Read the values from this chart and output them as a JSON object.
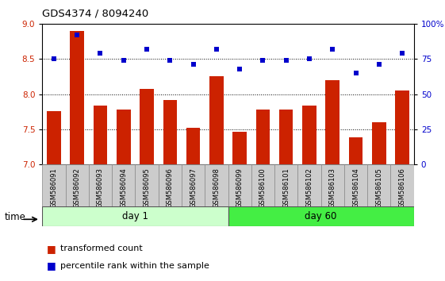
{
  "title": "GDS4374 / 8094240",
  "samples": [
    "GSM586091",
    "GSM586092",
    "GSM586093",
    "GSM586094",
    "GSM586095",
    "GSM586096",
    "GSM586097",
    "GSM586098",
    "GSM586099",
    "GSM586100",
    "GSM586101",
    "GSM586102",
    "GSM586103",
    "GSM586104",
    "GSM586105",
    "GSM586106"
  ],
  "transformed_count": [
    7.76,
    8.9,
    7.84,
    7.78,
    8.08,
    7.92,
    7.52,
    8.25,
    7.46,
    7.78,
    7.78,
    7.84,
    8.2,
    7.38,
    7.6,
    8.05
  ],
  "percentile_rank": [
    75,
    92,
    79,
    74,
    82,
    74,
    71,
    82,
    68,
    74,
    74,
    75,
    82,
    65,
    71,
    79
  ],
  "day1_count": 8,
  "day60_count": 8,
  "bar_color": "#cc2200",
  "scatter_color": "#0000cc",
  "left_ylim": [
    7,
    9
  ],
  "right_ylim": [
    0,
    100
  ],
  "left_yticks": [
    7,
    7.5,
    8,
    8.5,
    9
  ],
  "right_yticks": [
    0,
    25,
    50,
    75,
    100
  ],
  "right_yticklabels": [
    "0",
    "25",
    "50",
    "75",
    "100%"
  ],
  "grid_values": [
    7.5,
    8.0,
    8.5
  ],
  "day1_label": "day 1",
  "day60_label": "day 60",
  "time_label": "time",
  "legend1": "transformed count",
  "legend2": "percentile rank within the sample",
  "bg_color": "#ffffff",
  "tick_label_color_left": "#cc2200",
  "tick_label_color_right": "#0000cc",
  "group_bg_color_light": "#ccffcc",
  "group_bg_color_bright": "#44ee44",
  "xlabel_bg_color": "#cccccc",
  "bar_bottom": 7
}
